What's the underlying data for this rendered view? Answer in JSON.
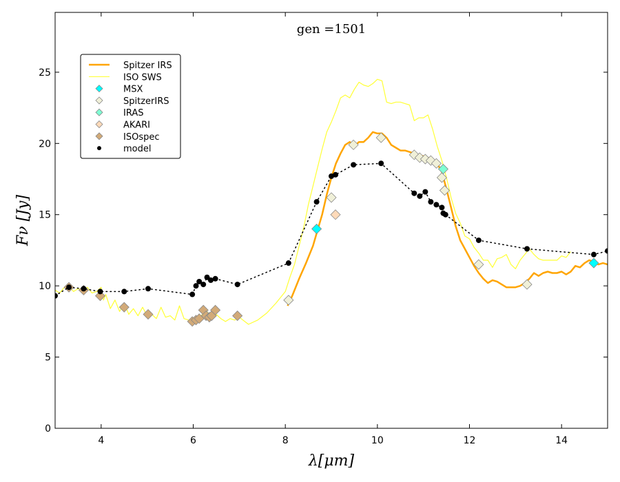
{
  "chart_data": {
    "type": "line",
    "title": "gen =1501",
    "xlabel": "λ[μm]",
    "ylabel": "Fν [Jy]",
    "xlim": [
      3,
      15
    ],
    "ylim": [
      0,
      29.2
    ],
    "grid": false,
    "x_ticks": [
      4,
      6,
      8,
      10,
      12,
      14
    ],
    "y_ticks": [
      0,
      5,
      10,
      15,
      20,
      25
    ],
    "legend_position": "top-left",
    "series": [
      {
        "name": "Spitzer IRS",
        "kind": "line",
        "color": "#FFA500",
        "x": [
          8.05,
          8.15,
          8.3,
          8.45,
          8.6,
          8.7,
          8.8,
          8.9,
          9.0,
          9.1,
          9.2,
          9.3,
          9.4,
          9.5,
          9.6,
          9.7,
          9.8,
          9.9,
          10.0,
          10.1,
          10.2,
          10.3,
          10.4,
          10.5,
          10.6,
          10.7,
          10.8,
          10.9,
          11.0,
          11.1,
          11.2,
          11.3,
          11.4,
          11.5,
          11.6,
          11.7,
          11.8,
          11.9,
          12.0,
          12.1,
          12.2,
          12.3,
          12.4,
          12.5,
          12.6,
          12.7,
          12.8,
          12.9,
          13.0,
          13.1,
          13.2,
          13.3,
          13.4,
          13.5,
          13.6,
          13.7,
          13.8,
          13.9,
          14.0,
          14.1,
          14.2,
          14.3,
          14.4,
          14.5,
          14.6,
          14.7,
          14.8,
          14.9,
          15.0
        ],
        "y": [
          8.6,
          9.3,
          10.5,
          11.6,
          12.8,
          13.9,
          15.0,
          16.4,
          17.6,
          18.6,
          19.3,
          19.9,
          20.1,
          19.8,
          20.1,
          20.1,
          20.4,
          20.8,
          20.7,
          20.7,
          20.4,
          19.9,
          19.7,
          19.5,
          19.5,
          19.4,
          19.3,
          19.2,
          19.1,
          19.0,
          18.8,
          18.6,
          18.0,
          16.8,
          15.5,
          14.2,
          13.2,
          12.6,
          12.0,
          11.4,
          10.9,
          10.5,
          10.2,
          10.4,
          10.3,
          10.1,
          9.9,
          9.9,
          9.9,
          10.0,
          10.2,
          10.5,
          10.9,
          10.7,
          10.9,
          11.0,
          10.9,
          10.9,
          11.0,
          10.8,
          11.0,
          11.4,
          11.3,
          11.6,
          11.8,
          11.7,
          11.5,
          11.6,
          11.5
        ]
      },
      {
        "name": "ISO SWS",
        "kind": "line",
        "color": "#FFFF33",
        "x": [
          3.0,
          3.1,
          3.2,
          3.3,
          3.4,
          3.5,
          3.6,
          3.7,
          3.8,
          3.9,
          4.0,
          4.05,
          4.1,
          4.2,
          4.3,
          4.4,
          4.5,
          4.6,
          4.7,
          4.8,
          4.9,
          5.0,
          5.1,
          5.2,
          5.3,
          5.4,
          5.5,
          5.6,
          5.7,
          5.8,
          5.9,
          6.0,
          6.1,
          6.2,
          6.3,
          6.4,
          6.5,
          6.6,
          6.7,
          6.8,
          6.9,
          7.0,
          7.2,
          7.4,
          7.6,
          7.8,
          8.0,
          8.1,
          8.2,
          8.3,
          8.4,
          8.5,
          8.6,
          8.7,
          8.8,
          8.9,
          9.0,
          9.1,
          9.2,
          9.3,
          9.4,
          9.5,
          9.6,
          9.7,
          9.8,
          9.9,
          10.0,
          10.1,
          10.2,
          10.3,
          10.4,
          10.5,
          10.6,
          10.7,
          10.8,
          10.9,
          11.0,
          11.1,
          11.2,
          11.3,
          11.4,
          11.5,
          11.6,
          11.7,
          11.8,
          11.9,
          12.0,
          12.1,
          12.2,
          12.3,
          12.4,
          12.5,
          12.6,
          12.7,
          12.8,
          12.9,
          13.0,
          13.1,
          13.2,
          13.3,
          13.4,
          13.5,
          13.6,
          13.7,
          13.8,
          13.9,
          14.0,
          14.1,
          14.2
        ],
        "y": [
          9.7,
          9.5,
          9.9,
          10.0,
          9.6,
          9.8,
          9.7,
          9.9,
          9.5,
          9.6,
          9.9,
          9.0,
          9.4,
          8.4,
          9.0,
          8.2,
          8.8,
          8.0,
          8.4,
          7.9,
          8.5,
          7.9,
          8.0,
          7.7,
          8.5,
          7.8,
          7.9,
          7.6,
          8.6,
          7.7,
          7.6,
          7.6,
          7.7,
          8.0,
          8.2,
          7.8,
          8.0,
          7.7,
          7.5,
          7.7,
          7.6,
          7.8,
          7.3,
          7.6,
          8.1,
          8.8,
          9.6,
          10.6,
          11.5,
          12.8,
          14.1,
          15.7,
          17.0,
          18.3,
          19.6,
          20.8,
          21.5,
          22.3,
          23.2,
          23.4,
          23.2,
          23.8,
          24.3,
          24.1,
          24.0,
          24.2,
          24.5,
          24.4,
          22.9,
          22.8,
          22.9,
          22.9,
          22.8,
          22.7,
          21.6,
          21.8,
          21.8,
          22.0,
          21.0,
          19.8,
          18.8,
          17.6,
          16.2,
          15.1,
          14.4,
          13.5,
          13.3,
          12.7,
          12.3,
          11.8,
          11.8,
          11.3,
          11.9,
          12.0,
          12.2,
          11.5,
          11.2,
          11.8,
          12.2,
          12.6,
          12.2,
          11.9,
          11.8,
          11.8,
          11.8,
          11.8,
          12.1,
          12.0,
          12.4
        ]
      },
      {
        "name": "MSX",
        "kind": "marker",
        "marker": "diamond",
        "color": "#00FFFF",
        "x": [
          8.68,
          14.7
        ],
        "y": [
          14.0,
          11.6
        ]
      },
      {
        "name": "SpitzerIRS",
        "kind": "marker",
        "marker": "diamond",
        "color": "#F0F0D8",
        "x": [
          8.07,
          9.0,
          9.48,
          10.08,
          10.8,
          10.92,
          11.04,
          11.16,
          11.28,
          11.4,
          11.46,
          12.2,
          13.25
        ],
        "y": [
          9.0,
          16.2,
          19.9,
          20.4,
          19.2,
          19.0,
          18.9,
          18.8,
          18.6,
          17.6,
          16.7,
          11.5,
          10.1
        ]
      },
      {
        "name": "IRAS",
        "kind": "marker",
        "marker": "diamond",
        "color": "#7FFFD4",
        "x": [
          11.43
        ],
        "y": [
          18.2
        ]
      },
      {
        "name": "AKARI",
        "kind": "marker",
        "marker": "diamond",
        "color": "#FFDAB9",
        "x": [
          9.09
        ],
        "y": [
          15.0
        ]
      },
      {
        "name": "ISOspec",
        "kind": "marker",
        "marker": "diamond",
        "color": "#D2AA78",
        "x": [
          3.3,
          3.62,
          3.98,
          4.5,
          5.02,
          5.98,
          6.06,
          6.13,
          6.22,
          6.28,
          6.35,
          6.4,
          6.48,
          6.96
        ],
        "y": [
          9.9,
          9.7,
          9.3,
          8.5,
          8.0,
          7.5,
          7.6,
          7.7,
          8.3,
          7.9,
          7.8,
          7.9,
          8.3,
          7.9
        ]
      },
      {
        "name": "model",
        "kind": "marker-dotted-line",
        "marker": "circle",
        "color": "#000000",
        "x": [
          3.0,
          3.3,
          3.62,
          3.98,
          4.5,
          5.02,
          5.98,
          6.06,
          6.13,
          6.22,
          6.3,
          6.38,
          6.48,
          6.96,
          8.07,
          8.68,
          9.0,
          9.09,
          9.48,
          10.08,
          10.8,
          10.92,
          11.04,
          11.16,
          11.28,
          11.4,
          11.43,
          11.48,
          12.2,
          13.25,
          14.7,
          15.0
        ],
        "y": [
          9.3,
          9.9,
          9.8,
          9.6,
          9.6,
          9.8,
          9.4,
          10.0,
          10.3,
          10.1,
          10.6,
          10.4,
          10.5,
          10.1,
          11.6,
          15.9,
          17.7,
          17.8,
          18.5,
          18.6,
          16.5,
          16.3,
          16.6,
          15.9,
          15.7,
          15.5,
          15.1,
          15.0,
          13.2,
          12.6,
          12.2,
          12.45
        ]
      }
    ]
  }
}
